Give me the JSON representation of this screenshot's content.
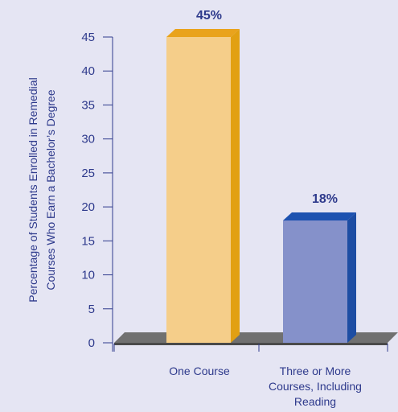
{
  "chart_data": {
    "type": "bar",
    "categories": [
      [
        "One Course"
      ],
      [
        "Three or More",
        "Courses, Including",
        "Reading"
      ]
    ],
    "values": [
      45,
      18
    ],
    "data_labels": [
      "45%",
      "18%"
    ],
    "ylabel_lines": [
      "Percentage of Students Enrolled in Remedial",
      "Courses Who Earn a Bachelor’s Degree"
    ],
    "yticks": [
      0,
      5,
      10,
      15,
      20,
      25,
      30,
      35,
      40,
      45
    ],
    "ylim": [
      0,
      45
    ],
    "grid": false,
    "legend": "none",
    "style": "3d-bars",
    "colors": {
      "background": "#E5E5F3",
      "axis": "#2E3A8C",
      "text": "#2E3A8C",
      "floor_top": "#707070",
      "floor_front": "#4A4A4A",
      "bars": [
        {
          "front": "#F5CE8A",
          "top": "#E9A31C",
          "side": "#E2A012"
        },
        {
          "front": "#8591CA",
          "top": "#1D52B0",
          "side": "#1D4DA3"
        }
      ]
    }
  }
}
